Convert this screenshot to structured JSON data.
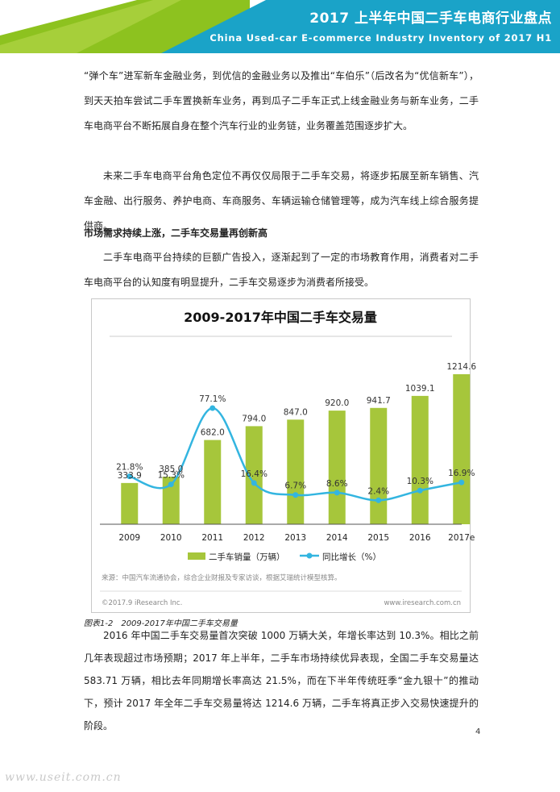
{
  "header": {
    "title": "2017 上半年中国二手车电商行业盘点",
    "subtitle": "China Used-car E-commerce Industry Inventory of 2017 H1"
  },
  "paragraphs": {
    "p1": "“弹个车”进军新车金融业务，到优信的金融业务以及推出“车伯乐”（后改名为“优信新车”），到天天拍车尝试二手车置换新车业务，再到瓜子二手车正式上线金融业务与新车业务，二手车电商平台不断拓展自身在整个汽车行业的业务链，业务覆盖范围逐步扩大。",
    "p2": "未来二手车电商平台角色定位不再仅仅局限于二手车交易，将逐步拓展至新车销售、汽车金融、出行服务、养护电商、车商服务、车辆运输仓储管理等，成为汽车线上综合服务提供商。",
    "heading": "市场需求持续上涨，二手车交易量再创新高",
    "p3": "二手车电商平台持续的巨额广告投入，逐渐起到了一定的市场教育作用，消费者对二手车电商平台的认知度有明显提升，二手车交易逐步为消费者所接受。",
    "p4": "2016 年中国二手车交易量首次突破 1000 万辆大关，年增长率达到 10.3%。相比之前几年表现超过市场预期；2017 年上半年，二手车市场持续优异表现，全国二手车交易量达 583.71 万辆，相比去年同期增长率高达 21.5%，而在下半年传统旺季“金九银十”的推动下，预计 2017 年全年二手车交易量将达 1214.6 万辆，二手车将真正步入交易快速提升的阶段。"
  },
  "figure": {
    "caption": "图表1-2　2009-2017年中国二手车交易量",
    "source": "来源：中国汽车流通协会，综合企业财报及专家访谈，根据艾瑞统计模型核算。",
    "copyright": "©2017.9 iResearch Inc.",
    "website": "www.iresearch.com.cn"
  },
  "chart_data": {
    "type": "bar",
    "title": "2009-2017年中国二手车交易量",
    "categories": [
      "2009",
      "2010",
      "2011",
      "2012",
      "2013",
      "2014",
      "2015",
      "2016",
      "2017e"
    ],
    "series": [
      {
        "name": "二手车销量（万辆）",
        "type": "bar",
        "values": [
          333.9,
          385.0,
          682.0,
          794.0,
          847.0,
          920.0,
          941.7,
          1039.1,
          1214.6
        ],
        "labels": [
          "333.9",
          "385.0",
          "682.0",
          "794.0",
          "847.0",
          "920.0",
          "941.7",
          "1039.1",
          "1214.6"
        ]
      },
      {
        "name": "同比增长（%）",
        "type": "line",
        "values": [
          21.8,
          15.3,
          77.1,
          16.4,
          6.7,
          8.6,
          2.4,
          10.3,
          16.9
        ],
        "labels": [
          "21.8%",
          "15.3%",
          "77.1%",
          "16.4%",
          "6.7%",
          "8.6%",
          "2.4%",
          "10.3%",
          "16.9%"
        ]
      }
    ],
    "grid": false,
    "legend": "bottom",
    "colors": {
      "bar": "#a6c63b",
      "line": "#33b5e0",
      "header": "#8dc21f",
      "header_accent": "#1aa3c8"
    }
  },
  "page_number": "4",
  "watermark": "www.useit.com.cn"
}
